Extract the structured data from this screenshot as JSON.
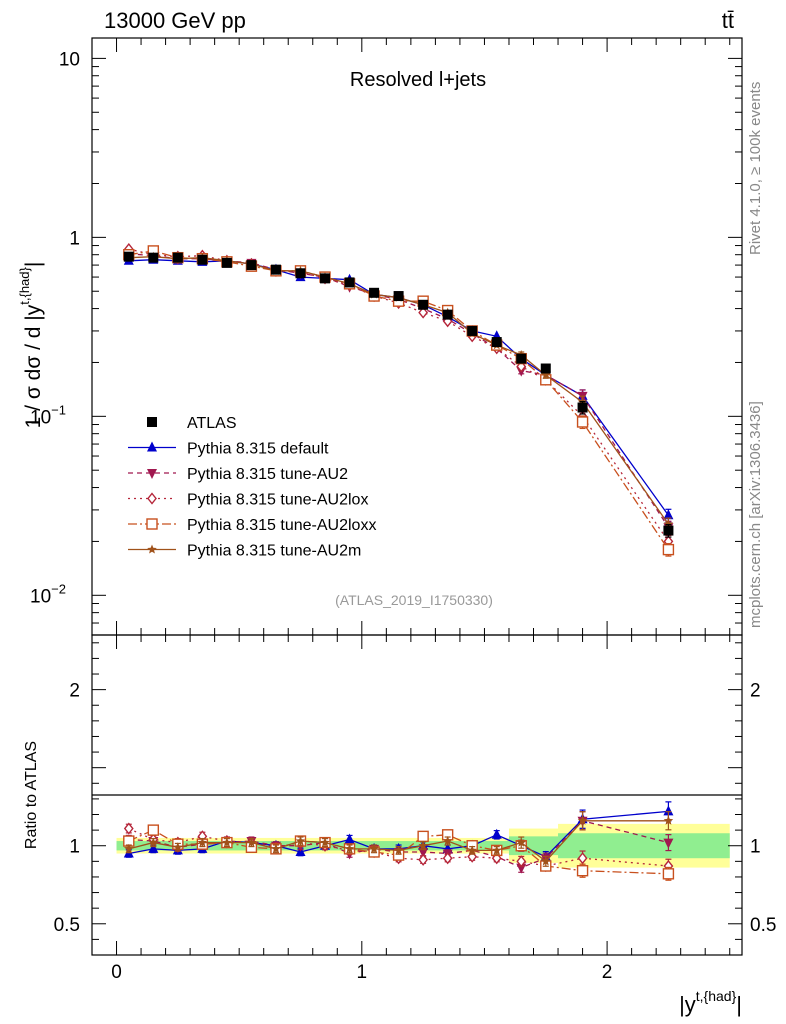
{
  "header": {
    "energy_label": "13000 GeV pp",
    "process_label": "tt̄"
  },
  "side_labels": {
    "rivet": "Rivet 4.1.0, ≥ 100k events",
    "mcplots": "mcplots.cern.ch [arXiv:1306.3436]"
  },
  "chart_data": [
    {
      "type": "line",
      "panel": "main",
      "title": "Resolved l+jets",
      "watermark": "(ATLAS_2019_I1750330)",
      "xlabel": "|y^{t,{had}}|",
      "ylabel": "1 / σ dσ / d |y^{t,{had}}|",
      "yscale": "log",
      "xlim": [
        -0.1,
        2.55
      ],
      "ylim": [
        0.006,
        13
      ],
      "yticks": [
        {
          "value": 10,
          "base": "10",
          "exp": ""
        },
        {
          "value": 1,
          "base": "1",
          "exp": ""
        },
        {
          "value": 0.1,
          "base": "10",
          "exp": "−1"
        },
        {
          "value": 0.01,
          "base": "10",
          "exp": "−2"
        }
      ],
      "x": [
        0.05,
        0.15,
        0.25,
        0.35,
        0.45,
        0.55,
        0.65,
        0.75,
        0.85,
        0.95,
        1.05,
        1.15,
        1.25,
        1.35,
        1.45,
        1.55,
        1.65,
        1.75,
        1.9,
        2.25
      ],
      "series": [
        {
          "name": "ATLAS",
          "color": "#000000",
          "marker": "square",
          "dash": "none",
          "values": [
            0.78,
            0.77,
            0.77,
            0.75,
            0.72,
            0.7,
            0.66,
            0.63,
            0.59,
            0.56,
            0.49,
            0.47,
            0.42,
            0.37,
            0.3,
            0.26,
            0.21,
            0.185,
            0.112,
            0.023
          ]
        },
        {
          "name": "Pythia 8.315 default",
          "color": "#0000cc",
          "marker": "triangle-up",
          "dash": "solid",
          "values": [
            0.74,
            0.75,
            0.74,
            0.73,
            0.74,
            0.71,
            0.66,
            0.6,
            0.59,
            0.58,
            0.48,
            0.46,
            0.42,
            0.36,
            0.3,
            0.28,
            0.21,
            0.17,
            0.13,
            0.028
          ]
        },
        {
          "name": "Pythia 8.315 tune-AU2",
          "color": "#a0174f",
          "marker": "triangle-down",
          "dash": "5,4",
          "values": [
            0.81,
            0.79,
            0.76,
            0.76,
            0.74,
            0.72,
            0.66,
            0.63,
            0.6,
            0.53,
            0.48,
            0.45,
            0.4,
            0.35,
            0.29,
            0.24,
            0.18,
            0.17,
            0.13,
            0.024
          ]
        },
        {
          "name": "Pythia 8.315 tune-AU2lox",
          "color": "#b5263a",
          "marker": "diamond-open",
          "dash": "2,4",
          "values": [
            0.86,
            0.8,
            0.78,
            0.79,
            0.74,
            0.71,
            0.65,
            0.64,
            0.59,
            0.54,
            0.47,
            0.43,
            0.38,
            0.34,
            0.28,
            0.24,
            0.19,
            0.16,
            0.1,
            0.02
          ]
        },
        {
          "name": "Pythia 8.315 tune-AU2loxx",
          "color": "#c8501e",
          "marker": "square-open",
          "dash": "9,3,2,3",
          "values": [
            0.8,
            0.84,
            0.77,
            0.76,
            0.73,
            0.69,
            0.65,
            0.65,
            0.6,
            0.55,
            0.47,
            0.44,
            0.44,
            0.39,
            0.3,
            0.25,
            0.21,
            0.16,
            0.093,
            0.018
          ]
        },
        {
          "name": "Pythia 8.315 tune-AU2m",
          "color": "#a0521a",
          "marker": "star",
          "dash": "solid",
          "values": [
            0.77,
            0.78,
            0.76,
            0.77,
            0.74,
            0.71,
            0.65,
            0.65,
            0.6,
            0.55,
            0.48,
            0.46,
            0.42,
            0.38,
            0.29,
            0.25,
            0.22,
            0.17,
            0.12,
            0.025
          ]
        }
      ]
    },
    {
      "type": "line",
      "panel": "ratio",
      "ylabel": "Ratio to ATLAS",
      "xlabel": "|y^{t,{had}}|",
      "xlim": [
        -0.1,
        2.55
      ],
      "ylim": [
        0.3,
        2.35
      ],
      "yticks": [
        0.5,
        1,
        2
      ],
      "xticks": [
        0,
        1,
        2
      ],
      "band_green": [
        [
          0.0,
          1.6,
          0.03
        ],
        [
          1.6,
          1.8,
          0.06
        ],
        [
          1.8,
          2.5,
          0.08
        ]
      ],
      "band_yellow": [
        [
          0.0,
          1.6,
          0.05
        ],
        [
          1.6,
          1.8,
          0.11
        ],
        [
          1.8,
          2.5,
          0.14
        ]
      ],
      "x": [
        0.05,
        0.15,
        0.25,
        0.35,
        0.45,
        0.55,
        0.65,
        0.75,
        0.85,
        0.95,
        1.05,
        1.15,
        1.25,
        1.35,
        1.45,
        1.55,
        1.65,
        1.75,
        1.9,
        2.25
      ],
      "series": [
        {
          "name": "Pythia 8.315 default",
          "color": "#0000cc",
          "marker": "triangle-up",
          "dash": "solid",
          "values": [
            0.95,
            0.98,
            0.97,
            0.98,
            1.03,
            1.02,
            1.0,
            0.96,
            1.0,
            1.04,
            0.98,
            0.98,
            1.0,
            0.98,
            1.0,
            1.07,
            1.0,
            0.93,
            1.17,
            1.22
          ]
        },
        {
          "name": "Pythia 8.315 tune-AU2",
          "color": "#a0174f",
          "marker": "triangle-down",
          "dash": "5,4",
          "values": [
            1.04,
            1.03,
            0.99,
            1.01,
            1.02,
            1.03,
            1.0,
            1.0,
            1.02,
            0.95,
            0.98,
            0.96,
            0.96,
            0.95,
            0.97,
            0.93,
            0.86,
            0.92,
            1.16,
            1.02
          ]
        },
        {
          "name": "Pythia 8.315 tune-AU2lox",
          "color": "#b5263a",
          "marker": "diamond-open",
          "dash": "2,4",
          "values": [
            1.11,
            1.04,
            1.02,
            1.06,
            1.03,
            1.02,
            0.99,
            1.02,
            1.0,
            0.97,
            0.96,
            0.92,
            0.91,
            0.92,
            0.93,
            0.92,
            0.9,
            0.87,
            0.92,
            0.87
          ]
        },
        {
          "name": "Pythia 8.315 tune-AU2loxx",
          "color": "#c8501e",
          "marker": "square-open",
          "dash": "9,3,2,3",
          "values": [
            1.03,
            1.1,
            1.01,
            1.01,
            1.02,
            0.99,
            0.98,
            1.03,
            1.02,
            0.98,
            0.96,
            0.94,
            1.06,
            1.07,
            1.0,
            0.97,
            1.0,
            0.87,
            0.84,
            0.82
          ]
        },
        {
          "name": "Pythia 8.315 tune-AU2m",
          "color": "#a0521a",
          "marker": "star",
          "dash": "solid",
          "values": [
            0.98,
            1.02,
            0.99,
            1.02,
            1.02,
            1.02,
            0.98,
            1.03,
            1.02,
            0.98,
            0.98,
            0.97,
            1.0,
            1.03,
            0.97,
            0.97,
            1.02,
            0.9,
            1.16,
            1.16
          ]
        }
      ]
    }
  ]
}
